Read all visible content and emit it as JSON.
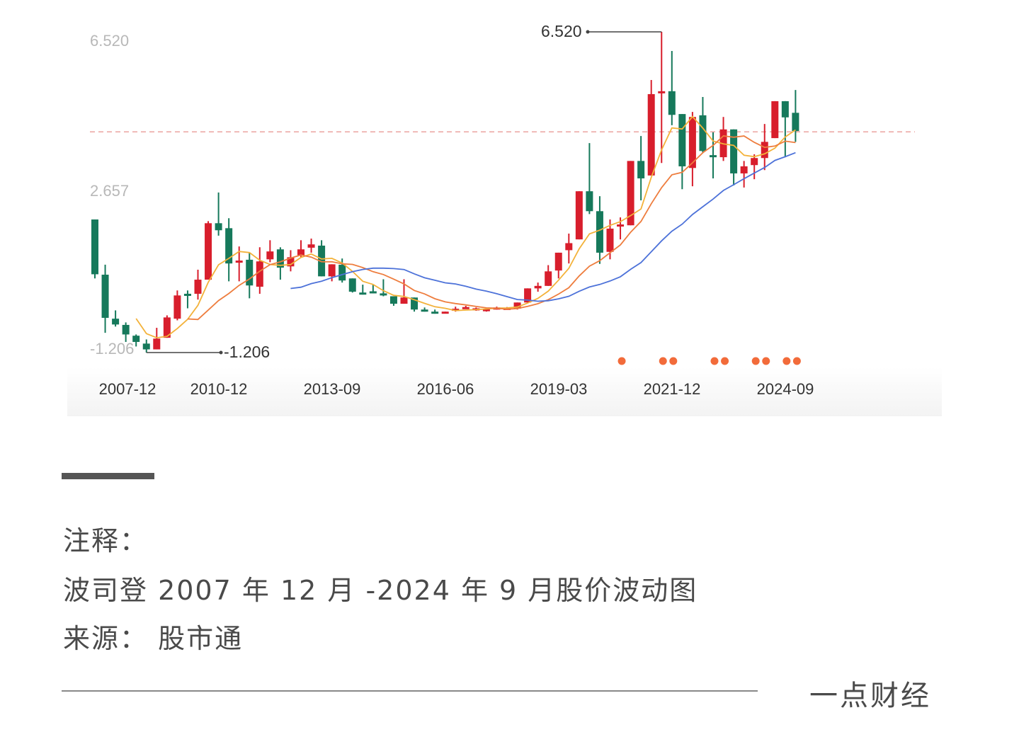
{
  "chart_data": {
    "type": "candlestick",
    "ohlc_order": [
      "open",
      "close",
      "low",
      "high"
    ],
    "y_labels": [
      "6.520",
      "2.657",
      "-1.206"
    ],
    "ylim": [
      -1.206,
      6.52
    ],
    "x_tick_labels": [
      "2007-12",
      "2010-12",
      "2013-09",
      "2016-06",
      "2019-03",
      "2021-12",
      "2024-09"
    ],
    "max_annotation": "6.520",
    "min_annotation": "-1.206",
    "reference_line_value": 4.11,
    "up_color": "#d81e2c",
    "down_color": "#16795b",
    "moving_averages": [
      {
        "period": 5,
        "color": "#f3b23a"
      },
      {
        "period": 10,
        "color": "#ee7d3e"
      },
      {
        "period": 20,
        "color": "#4d72d9"
      }
    ],
    "marker_color": "#f26b3a",
    "marker_candle_indices": [
      51,
      55,
      56,
      60,
      61,
      64,
      65,
      67,
      68
    ],
    "candles": [
      [
        2.0,
        0.68,
        0.58,
        2.0
      ],
      [
        0.67,
        -0.37,
        -0.73,
        0.91
      ],
      [
        -0.39,
        -0.53,
        -0.58,
        -0.19
      ],
      [
        -0.54,
        -0.77,
        -0.95,
        -0.48
      ],
      [
        -0.8,
        -0.95,
        -1.06,
        -0.77
      ],
      [
        -0.99,
        -1.13,
        -1.206,
        -0.89
      ],
      [
        -1.13,
        -0.87,
        -1.13,
        -0.61
      ],
      [
        -0.85,
        -0.36,
        -0.85,
        -0.31
      ],
      [
        -0.39,
        0.17,
        -0.43,
        0.29
      ],
      [
        0.21,
        0.17,
        -0.14,
        0.29
      ],
      [
        0.21,
        0.55,
        0.07,
        0.79
      ],
      [
        0.55,
        1.91,
        0.55,
        1.96
      ],
      [
        1.91,
        1.74,
        1.61,
        2.65
      ],
      [
        1.79,
        0.94,
        0.51,
        2.03
      ],
      [
        0.96,
        1.01,
        0.51,
        1.35
      ],
      [
        1.03,
        0.41,
        0.1,
        1.2
      ],
      [
        0.38,
        0.99,
        0.21,
        1.33
      ],
      [
        1.04,
        1.23,
        0.97,
        1.5
      ],
      [
        1.28,
        0.84,
        0.55,
        1.33
      ],
      [
        0.87,
        1.09,
        0.75,
        1.26
      ],
      [
        1.14,
        1.28,
        1.09,
        1.5
      ],
      [
        1.32,
        1.4,
        1.2,
        1.54
      ],
      [
        1.37,
        0.63,
        0.63,
        1.5
      ],
      [
        0.63,
        0.92,
        0.51,
        0.92
      ],
      [
        0.91,
        0.53,
        0.48,
        1.06
      ],
      [
        0.58,
        0.26,
        0.24,
        0.58
      ],
      [
        0.24,
        0.22,
        0.19,
        0.43
      ],
      [
        0.27,
        0.24,
        0.22,
        0.43
      ],
      [
        0.22,
        0.17,
        0.15,
        0.56
      ],
      [
        0.15,
        -0.03,
        -0.08,
        0.15
      ],
      [
        -0.03,
        0.12,
        -0.03,
        0.56
      ],
      [
        0.12,
        -0.17,
        -0.22,
        0.12
      ],
      [
        -0.17,
        -0.19,
        -0.22,
        -0.12
      ],
      [
        -0.22,
        -0.24,
        -0.27,
        -0.17
      ],
      [
        -0.25,
        -0.22,
        -0.25,
        -0.22
      ],
      [
        -0.17,
        -0.15,
        -0.22,
        -0.1
      ],
      [
        -0.12,
        -0.11,
        -0.15,
        -0.08
      ],
      [
        -0.15,
        -0.14,
        -0.2,
        -0.12
      ],
      [
        -0.17,
        -0.16,
        -0.22,
        -0.14
      ],
      [
        -0.15,
        -0.12,
        -0.17,
        -0.1
      ],
      [
        -0.14,
        -0.13,
        -0.17,
        -0.11
      ],
      [
        -0.15,
        0.0,
        -0.17,
        0.0
      ],
      [
        0.0,
        0.34,
        -0.02,
        0.34
      ],
      [
        0.34,
        0.4,
        0.26,
        0.48
      ],
      [
        0.4,
        0.75,
        0.4,
        0.9
      ],
      [
        0.77,
        1.2,
        0.58,
        1.2
      ],
      [
        1.26,
        1.43,
        0.94,
        1.66
      ],
      [
        1.52,
        2.68,
        1.52,
        2.68
      ],
      [
        2.68,
        2.2,
        2.13,
        3.84
      ],
      [
        2.2,
        1.2,
        0.93,
        2.56
      ],
      [
        1.22,
        1.78,
        1.04,
        2.0
      ],
      [
        1.85,
        1.88,
        1.52,
        2.05
      ],
      [
        1.86,
        3.41,
        1.86,
        3.41
      ],
      [
        3.41,
        2.99,
        2.46,
        4.01
      ],
      [
        3.06,
        5.02,
        3.06,
        5.36
      ],
      [
        5.04,
        5.09,
        3.36,
        6.52
      ],
      [
        5.09,
        4.52,
        4.27,
        6.06
      ],
      [
        4.54,
        3.28,
        2.73,
        4.54
      ],
      [
        3.24,
        4.47,
        2.8,
        4.59
      ],
      [
        4.51,
        3.65,
        3.6,
        4.95
      ],
      [
        3.55,
        3.53,
        2.99,
        4.1
      ],
      [
        3.5,
        4.17,
        3.41,
        4.47
      ],
      [
        4.17,
        3.11,
        2.82,
        4.17
      ],
      [
        3.11,
        3.28,
        2.77,
        3.41
      ],
      [
        3.31,
        3.48,
        2.97,
        3.57
      ],
      [
        3.48,
        3.87,
        3.19,
        4.3
      ],
      [
        3.96,
        4.85,
        3.96,
        4.85
      ],
      [
        4.85,
        4.46,
        3.5,
        4.85
      ],
      [
        4.57,
        4.13,
        3.87,
        5.12
      ]
    ]
  },
  "caption": {
    "heading": "注释：",
    "description": "波司登 2007 年 12 月 -2024 年 9 月股价波动图",
    "source": "来源：  股市通"
  },
  "brand": "一点财经"
}
